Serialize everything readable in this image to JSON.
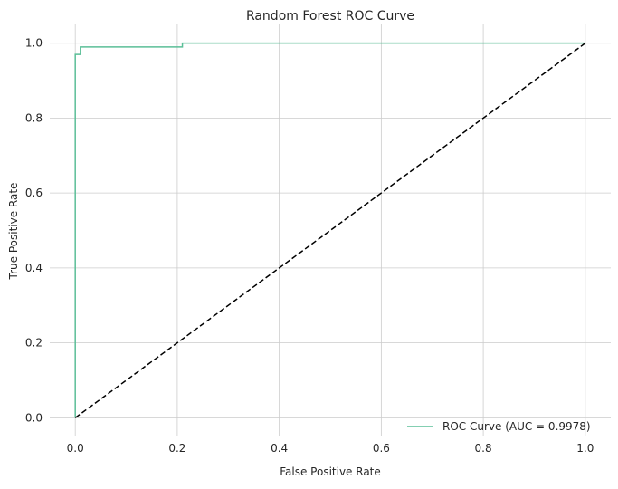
{
  "chart_data": {
    "type": "line",
    "title": "Random Forest ROC Curve",
    "xlabel": "False Positive Rate",
    "ylabel": "True Positive Rate",
    "xlim": [
      -0.05,
      1.05
    ],
    "ylim": [
      -0.05,
      1.05
    ],
    "xticks": [
      0.0,
      0.2,
      0.4,
      0.6,
      0.8,
      1.0
    ],
    "yticks": [
      0.0,
      0.2,
      0.4,
      0.6,
      0.8,
      1.0
    ],
    "xtick_labels": [
      "0.0",
      "0.2",
      "0.4",
      "0.6",
      "0.8",
      "1.0"
    ],
    "ytick_labels": [
      "0.0",
      "0.2",
      "0.4",
      "0.6",
      "0.8",
      "1.0"
    ],
    "grid": true,
    "legend_position": "lower-right",
    "series": [
      {
        "name": "ROC Curve (AUC = 0.9978)",
        "color": "#5bbf98",
        "style": "solid",
        "x": [
          0.0,
          0.0,
          0.01,
          0.01,
          0.21,
          0.21,
          1.0
        ],
        "y": [
          0.0,
          0.97,
          0.97,
          0.99,
          0.99,
          1.0,
          1.0
        ]
      },
      {
        "color": "#000000",
        "style": "dashed",
        "x": [
          0.0,
          1.0
        ],
        "y": [
          0.0,
          1.0
        ]
      }
    ]
  }
}
